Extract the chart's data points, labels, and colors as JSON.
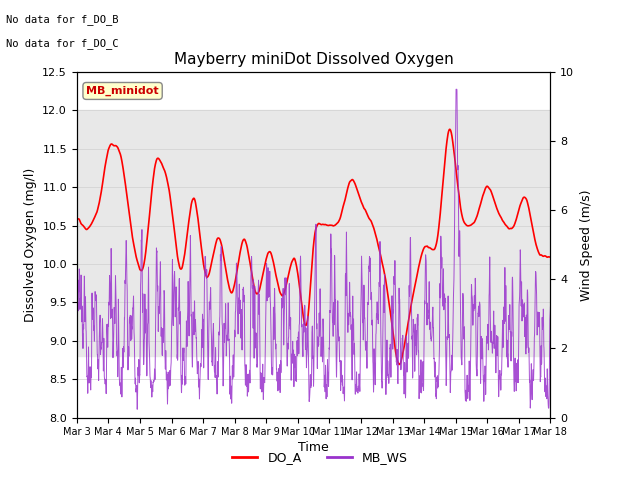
{
  "title": "Mayberry miniDot Dissolved Oxygen",
  "xlabel": "Time",
  "ylabel_left": "Dissolved Oxygen (mg/l)",
  "ylabel_right": "Wind Speed (m/s)",
  "annotation_line1": "No data for f_DO_B",
  "annotation_line2": "No data for f_DO_C",
  "legend_label": "MB_minidot",
  "legend_line1": "DO_A",
  "legend_line2": "MB_WS",
  "do_color": "#ff0000",
  "ws_color": "#9932cc",
  "ylim_left": [
    8.0,
    12.5
  ],
  "ylim_right": [
    0.0,
    10.0
  ],
  "x_tick_labels": [
    "Mar 3",
    "Mar 4",
    "Mar 5",
    "Mar 6",
    "Mar 7",
    "Mar 8",
    "Mar 9",
    "Mar 10",
    "Mar 11",
    "Mar 12",
    "Mar 13",
    "Mar 14",
    "Mar 15",
    "Mar 16",
    "Mar 17",
    "Mar 18"
  ],
  "shaded_band": [
    8.8,
    12.0
  ],
  "background_color": "#ffffff",
  "grid_color": "#d0d0d0",
  "do_linewidth": 1.2,
  "ws_linewidth": 0.7,
  "figsize": [
    6.4,
    4.8
  ],
  "dpi": 100
}
